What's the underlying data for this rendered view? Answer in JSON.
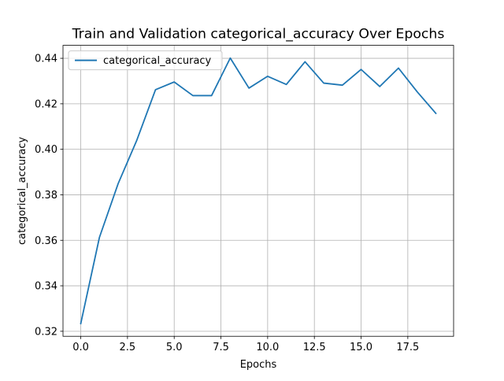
{
  "chart_data": {
    "type": "line",
    "title": "Train and Validation categorical_accuracy Over Epochs",
    "xlabel": "Epochs",
    "ylabel": "categorical_accuracy",
    "xlim": [
      -0.95,
      19.95
    ],
    "ylim": [
      0.3178,
      0.4457
    ],
    "xticks": [
      0.0,
      2.5,
      5.0,
      7.5,
      10.0,
      12.5,
      15.0,
      17.5
    ],
    "xtick_labels": [
      "0.0",
      "2.5",
      "5.0",
      "7.5",
      "10.0",
      "12.5",
      "15.0",
      "17.5"
    ],
    "yticks": [
      0.32,
      0.34,
      0.36,
      0.38,
      0.4,
      0.42,
      0.44
    ],
    "ytick_labels": [
      "0.32",
      "0.34",
      "0.36",
      "0.38",
      "0.40",
      "0.42",
      "0.44"
    ],
    "grid": true,
    "legend_position": "top-left",
    "colors": {
      "series": "#1f77b4",
      "grid": "#b0b0b0",
      "axes": "#000000"
    },
    "x": [
      0,
      1,
      2,
      3,
      4,
      5,
      6,
      7,
      8,
      9,
      10,
      11,
      12,
      13,
      14,
      15,
      16,
      17,
      18,
      19
    ],
    "series": [
      {
        "name": "categorical_accuracy",
        "values": [
          0.3234,
          0.3613,
          0.3849,
          0.404,
          0.4262,
          0.4296,
          0.4236,
          0.4236,
          0.4401,
          0.4269,
          0.4321,
          0.4285,
          0.4385,
          0.4291,
          0.4282,
          0.4351,
          0.4276,
          0.4357,
          0.4253,
          0.4158
        ]
      }
    ]
  }
}
